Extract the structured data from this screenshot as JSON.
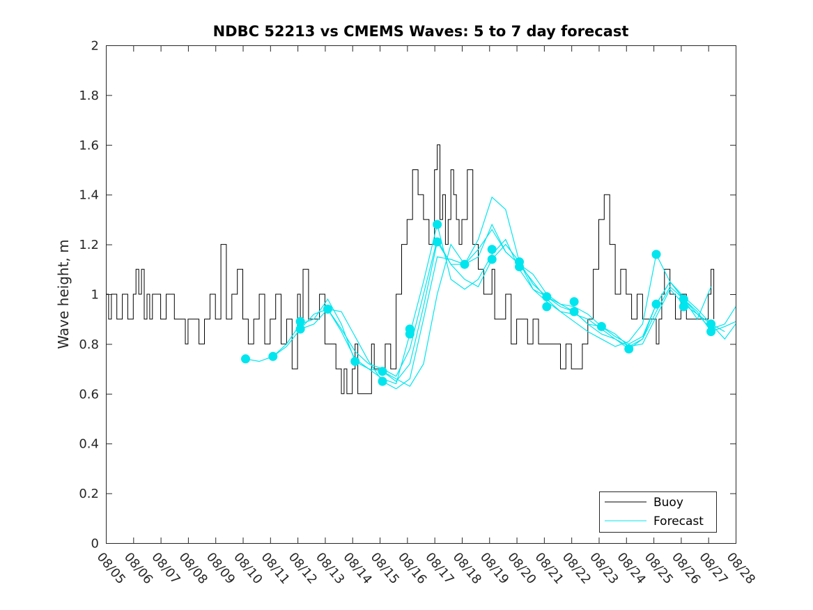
{
  "chart_data": {
    "type": "line",
    "title": "NDBC 52213 vs CMEMS Waves: 5 to 7 day forecast",
    "xlabel": "",
    "ylabel": "Wave height, m",
    "xlim": [
      0,
      23
    ],
    "ylim": [
      0,
      2
    ],
    "x_tick_labels": [
      "08/05",
      "08/06",
      "08/07",
      "08/08",
      "08/09",
      "08/10",
      "08/11",
      "08/12",
      "08/13",
      "08/14",
      "08/15",
      "08/16",
      "08/17",
      "08/18",
      "08/19",
      "08/20",
      "08/21",
      "08/22",
      "08/23",
      "08/24",
      "08/25",
      "08/26",
      "08/27",
      "08/28"
    ],
    "y_ticks": [
      0,
      0.2,
      0.4,
      0.6,
      0.8,
      1,
      1.2,
      1.4,
      1.6,
      1.8,
      2
    ],
    "y_tick_labels": [
      "0",
      "0.2",
      "0.4",
      "0.6",
      "0.8",
      "1",
      "1.2",
      "1.4",
      "1.6",
      "1.8",
      "2"
    ],
    "legend": {
      "position": "bottom-right",
      "entries": [
        "Buoy",
        "Forecast"
      ]
    },
    "colors": {
      "buoy": "#000000",
      "forecast": "#00e5ee",
      "axis": "#262626"
    },
    "buoy": {
      "name": "Buoy",
      "x": [
        0,
        0.1,
        0.2,
        0.4,
        0.6,
        0.8,
        1.0,
        1.1,
        1.2,
        1.3,
        1.4,
        1.5,
        1.6,
        1.7,
        1.9,
        2.0,
        2.2,
        2.5,
        2.7,
        2.9,
        3.0,
        3.2,
        3.4,
        3.6,
        3.8,
        4.0,
        4.2,
        4.4,
        4.6,
        4.8,
        5.0,
        5.2,
        5.4,
        5.6,
        5.8,
        6.0,
        6.2,
        6.4,
        6.6,
        6.8,
        7.0,
        7.1,
        7.2,
        7.4,
        7.6,
        7.8,
        8.0,
        8.2,
        8.4,
        8.6,
        8.7,
        8.8,
        9.0,
        9.1,
        9.2,
        9.4,
        9.6,
        9.7,
        9.8,
        10.0,
        10.2,
        10.4,
        10.6,
        10.8,
        11.0,
        11.2,
        11.4,
        11.6,
        11.8,
        12.0,
        12.1,
        12.2,
        12.3,
        12.4,
        12.5,
        12.6,
        12.7,
        12.8,
        12.9,
        13.0,
        13.2,
        13.4,
        13.6,
        13.8,
        14.0,
        14.1,
        14.2,
        14.4,
        14.6,
        14.8,
        15.0,
        15.2,
        15.4,
        15.6,
        15.8,
        16.0,
        16.2,
        16.4,
        16.6,
        16.8,
        17.0,
        17.2,
        17.4,
        17.6,
        17.8,
        18.0,
        18.2,
        18.4,
        18.6,
        18.8,
        19.0,
        19.2,
        19.4,
        19.6,
        19.8,
        20.0,
        20.1,
        20.2,
        20.3,
        20.4,
        20.6,
        20.8,
        21.0,
        21.2,
        21.4,
        21.6,
        21.8,
        22.0,
        22.1,
        22.2
      ],
      "y": [
        1.0,
        0.9,
        1.0,
        0.9,
        1.0,
        0.9,
        1.0,
        1.1,
        1.0,
        1.1,
        0.9,
        1.0,
        0.9,
        1.0,
        1.0,
        0.9,
        1.0,
        0.9,
        0.9,
        0.8,
        0.9,
        0.9,
        0.8,
        0.9,
        1.0,
        0.9,
        1.2,
        0.9,
        1.0,
        1.1,
        0.9,
        0.8,
        0.9,
        1.0,
        0.8,
        0.9,
        1.0,
        0.8,
        0.9,
        0.7,
        1.0,
        0.9,
        1.1,
        0.9,
        0.9,
        1.0,
        0.8,
        0.8,
        0.7,
        0.6,
        0.7,
        0.6,
        0.7,
        0.8,
        0.6,
        0.6,
        0.6,
        0.8,
        0.7,
        0.7,
        0.8,
        0.7,
        1.0,
        1.2,
        1.3,
        1.5,
        1.4,
        1.3,
        1.2,
        1.5,
        1.6,
        1.3,
        1.4,
        1.2,
        1.3,
        1.5,
        1.4,
        1.3,
        1.2,
        1.3,
        1.5,
        1.2,
        1.1,
        1.0,
        1.0,
        1.1,
        0.9,
        0.9,
        1.0,
        0.8,
        0.9,
        0.9,
        0.8,
        0.9,
        0.8,
        0.8,
        0.8,
        0.8,
        0.7,
        0.8,
        0.7,
        0.7,
        0.8,
        0.9,
        1.1,
        1.3,
        1.4,
        1.2,
        1.0,
        1.1,
        1.0,
        0.9,
        1.0,
        0.9,
        0.9,
        0.9,
        0.8,
        0.9,
        1.0,
        1.1,
        1.0,
        0.9,
        1.0,
        0.9,
        0.9,
        0.9,
        0.9,
        1.0,
        1.1,
        0.9
      ]
    },
    "forecast_series": [
      {
        "name": "Forecast",
        "x": [
          5.1,
          5.6,
          6.1,
          6.6,
          7.1,
          7.6,
          8.1,
          8.6,
          9.1,
          9.6,
          10.1,
          10.6,
          11.1,
          11.6,
          12.1,
          12.6,
          13.1,
          13.6,
          14.1,
          14.6,
          15.1,
          15.6,
          16.1,
          16.6,
          17.1,
          17.6,
          18.1,
          18.6,
          19.1,
          19.6,
          20.1,
          20.6,
          21.1,
          21.6,
          22.1,
          22.6
        ],
        "y": [
          0.74,
          0.73,
          0.75,
          0.79,
          0.86,
          0.92,
          0.94,
          0.86,
          0.77,
          0.72,
          0.7,
          0.67,
          0.78,
          1.0,
          1.22,
          1.12,
          1.12,
          1.18,
          1.26,
          1.17,
          1.12,
          1.05,
          0.98,
          0.93,
          0.92,
          0.9,
          0.86,
          0.82,
          0.79,
          0.82,
          0.93,
          1.03,
          0.98,
          0.92,
          0.88,
          0.85
        ]
      },
      {
        "name": "Forecast",
        "x": [
          6.1,
          6.6,
          7.1,
          7.6,
          8.1,
          8.6,
          9.1,
          9.6,
          10.1,
          10.6,
          11.1,
          11.6,
          12.1,
          12.6,
          13.1,
          13.6,
          14.1,
          14.6,
          15.1,
          15.6,
          16.1,
          16.6,
          17.1,
          17.6,
          18.1,
          18.6,
          19.1,
          19.6,
          20.1,
          20.6,
          21.1,
          21.6,
          22.1,
          22.6,
          23.0
        ],
        "y": [
          0.75,
          0.8,
          0.88,
          0.9,
          0.98,
          0.88,
          0.73,
          0.7,
          0.66,
          0.64,
          0.84,
          1.05,
          1.28,
          1.06,
          1.02,
          1.06,
          1.16,
          1.22,
          1.1,
          1.02,
          0.99,
          0.96,
          0.95,
          0.92,
          0.87,
          0.84,
          0.79,
          0.8,
          0.91,
          1.02,
          0.96,
          0.92,
          0.86,
          0.88,
          0.95
        ]
      },
      {
        "name": "Forecast",
        "x": [
          7.1,
          7.6,
          8.1,
          8.6,
          9.1,
          9.6,
          10.1,
          10.6,
          11.1,
          11.6,
          12.1,
          12.6,
          13.1,
          13.6,
          14.1,
          14.6,
          15.1,
          15.6,
          16.1,
          16.6,
          17.1,
          17.6,
          18.1,
          18.6,
          19.1,
          19.6,
          20.1,
          20.6,
          21.1,
          21.6,
          22.1,
          22.6,
          23.0
        ],
        "y": [
          0.86,
          0.88,
          0.94,
          0.85,
          0.74,
          0.7,
          0.69,
          0.65,
          0.72,
          0.95,
          1.21,
          1.12,
          1.06,
          1.03,
          1.14,
          1.2,
          1.13,
          1.04,
          0.99,
          0.95,
          0.93,
          0.88,
          0.84,
          0.82,
          0.78,
          0.82,
          0.96,
          1.05,
          0.98,
          0.93,
          0.85,
          0.87,
          0.89
        ]
      },
      {
        "name": "Forecast",
        "x": [
          8.1,
          8.6,
          9.1,
          9.6,
          10.1,
          10.6,
          11.1,
          11.6,
          12.1,
          12.6,
          13.1,
          13.6,
          14.1,
          14.6,
          15.1,
          15.6,
          16.1,
          16.6,
          17.1,
          17.6,
          18.1,
          18.6,
          19.1,
          19.6,
          20.1,
          20.6,
          21.1,
          21.6,
          22.1,
          22.6,
          23.0
        ],
        "y": [
          0.94,
          0.93,
          0.83,
          0.73,
          0.65,
          0.62,
          0.66,
          0.9,
          1.15,
          1.14,
          1.12,
          1.15,
          1.28,
          1.17,
          1.12,
          1.08,
          1.0,
          0.96,
          0.93,
          0.88,
          0.87,
          0.83,
          0.8,
          0.83,
          0.96,
          1.05,
          0.99,
          0.94,
          0.88,
          0.82,
          0.88
        ]
      },
      {
        "name": "Forecast",
        "x": [
          10.1,
          10.6,
          11.1,
          11.6,
          12.1,
          12.6,
          13.1,
          13.6,
          14.1,
          14.6,
          15.1,
          15.6,
          16.1,
          16.6,
          17.1,
          17.6,
          18.1,
          18.6,
          19.1,
          19.6,
          20.1,
          20.6,
          21.1,
          21.6,
          22.1
        ],
        "y": [
          0.69,
          0.66,
          0.63,
          0.72,
          1.0,
          1.2,
          1.12,
          1.22,
          1.39,
          1.34,
          1.13,
          1.02,
          0.97,
          0.93,
          0.89,
          0.85,
          0.82,
          0.79,
          0.81,
          0.88,
          1.16,
          1.05,
          0.98,
          0.9,
          1.03
        ]
      }
    ],
    "forecast_markers": {
      "x": [
        5.1,
        6.1,
        7.1,
        7.1,
        8.1,
        9.1,
        10.1,
        10.1,
        11.1,
        11.1,
        12.1,
        12.1,
        13.1,
        14.1,
        14.1,
        15.1,
        15.1,
        16.1,
        16.1,
        17.1,
        17.1,
        18.1,
        19.1,
        20.1,
        20.1,
        21.1,
        21.1,
        22.1,
        22.1
      ],
      "y": [
        0.74,
        0.75,
        0.89,
        0.86,
        0.94,
        0.73,
        0.69,
        0.65,
        0.86,
        0.84,
        1.28,
        1.21,
        1.12,
        1.18,
        1.14,
        1.13,
        1.11,
        0.99,
        0.95,
        0.97,
        0.93,
        0.87,
        0.78,
        1.16,
        0.96,
        0.98,
        0.95,
        0.88,
        0.85
      ]
    }
  }
}
